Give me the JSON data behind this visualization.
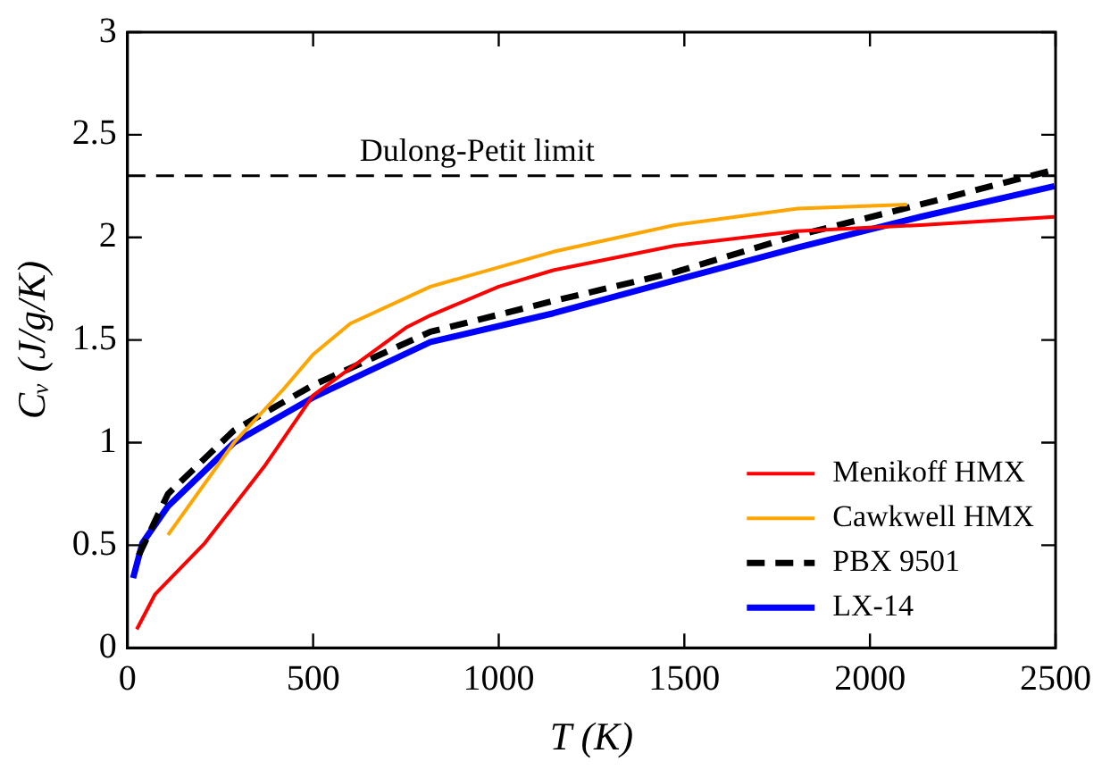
{
  "chart_data": {
    "type": "line",
    "xlabel": "T (K)",
    "ylabel": "Cᵥ (J/g/K)",
    "xlim": [
      0,
      2500
    ],
    "ylim": [
      0,
      3
    ],
    "xticks": [
      0,
      500,
      1000,
      1500,
      2000,
      2500
    ],
    "yticks": [
      0,
      0.5,
      1,
      1.5,
      2,
      2.5,
      3
    ],
    "grid": false,
    "legend": "bottom right",
    "marker": "none",
    "ref_lines": [
      {
        "axis": "y",
        "value": 2.3,
        "label": "Dulong-Petit limit",
        "color": "#000000",
        "line_style": "dashed"
      }
    ],
    "series": [
      {
        "name": "Menikoff HMX",
        "color": "#ff0000",
        "line_style": "solid",
        "x": [
          25,
          74,
          208,
          371,
          500,
          750,
          816,
          1000,
          1147,
          1474,
          1805,
          2136,
          2497
        ],
        "values": [
          0.09,
          0.26,
          0.51,
          0.89,
          1.23,
          1.56,
          1.62,
          1.76,
          1.84,
          1.96,
          2.03,
          2.06,
          2.1
        ]
      },
      {
        "name": "Cawkwell HMX",
        "color": "#ffa500",
        "line_style": "solid",
        "x": [
          109,
          287,
          420,
          500,
          600,
          816,
          1147,
          1474,
          1805,
          2100
        ],
        "values": [
          0.55,
          1.0,
          1.26,
          1.43,
          1.58,
          1.76,
          1.93,
          2.06,
          2.14,
          2.16
        ]
      },
      {
        "name": "PBX 9501",
        "color": "#000000",
        "line_style": "dashed",
        "x": [
          30,
          109,
          287,
          500,
          816,
          1147,
          1474,
          1805,
          2136,
          2497
        ],
        "values": [
          0.45,
          0.75,
          1.06,
          1.28,
          1.54,
          1.69,
          1.83,
          2.01,
          2.16,
          2.33
        ]
      },
      {
        "name": "LX-14",
        "color": "#0000ff",
        "line_style": "solid",
        "x": [
          15,
          40,
          109,
          287,
          500,
          816,
          1147,
          1474,
          1805,
          2136,
          2497
        ],
        "values": [
          0.34,
          0.51,
          0.69,
          1.0,
          1.22,
          1.49,
          1.63,
          1.79,
          1.95,
          2.1,
          2.25
        ]
      }
    ]
  }
}
